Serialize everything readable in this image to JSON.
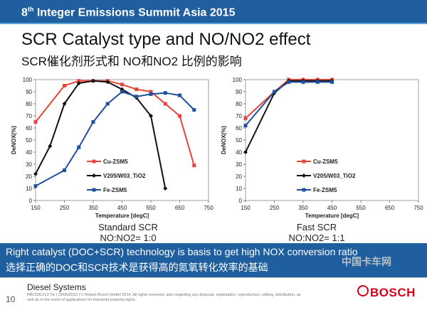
{
  "header": {
    "title_prefix": "8",
    "title_sup": "th",
    "title_rest": " Integer Emissions Summit Asia 2015"
  },
  "slide": {
    "title": "SCR Catalyst type and NO/NO2 effect",
    "subtitle": "SCR催化剂形式和 NO和NO2 比例的影响"
  },
  "banner": {
    "english": "Right catalyst (DOC+SCR) technology is basis to get  high NOX conversion ratio",
    "chinese": "选择正确的DOC和SCR技术是获得高的氮氧转化效率的基础"
  },
  "footer": {
    "page_number": "10",
    "division": "Diesel Systems",
    "legal": "RBCD/EVL3 Tw | 15/05/2015 | © Robert Bosch GmbH 2014. All rights reserved, also regarding any disposal, exploitation, reproduction, editing, distribution, as well as in the event of applications for industrial property rights.",
    "watermark": "中国卡车网",
    "logo_text": "BOSCH"
  },
  "colors": {
    "cu": "#e8443a",
    "v": "#111111",
    "fe": "#1f4f9f",
    "header": "#1f5f9f",
    "brand": "#d4001a"
  },
  "chart_data": [
    {
      "type": "line",
      "title": "Standard SCR",
      "caption": "Standard SCR",
      "caption2": "NO:NO2= 1:0",
      "xlabel": "Temperature [degC]",
      "ylabel": "DeNOX(%)",
      "xlim": [
        150,
        750
      ],
      "ylim": [
        0,
        100
      ],
      "xticks": [
        150,
        250,
        350,
        450,
        550,
        650,
        750
      ],
      "yticks": [
        0,
        10,
        20,
        30,
        40,
        50,
        60,
        70,
        80,
        90,
        100
      ],
      "series": [
        {
          "name": "Cu-ZSM5",
          "x": [
            150,
            250,
            300,
            350,
            400,
            450,
            500,
            550,
            600,
            650,
            700
          ],
          "y": [
            65,
            95,
            99,
            99,
            99,
            96,
            92,
            90,
            80,
            70,
            29
          ]
        },
        {
          "name": "V205/W03_TiO2",
          "x": [
            150,
            200,
            250,
            300,
            350,
            400,
            450,
            500,
            550,
            600
          ],
          "y": [
            22,
            45,
            80,
            97,
            99,
            98,
            92,
            85,
            70,
            10
          ]
        },
        {
          "name": "Fe-ZSM5",
          "x": [
            150,
            250,
            300,
            350,
            400,
            450,
            500,
            550,
            600,
            650,
            700
          ],
          "y": [
            12,
            25,
            44,
            65,
            80,
            90,
            86,
            88,
            89,
            87,
            75
          ]
        }
      ]
    },
    {
      "type": "line",
      "title": "Fast SCR",
      "caption": "Fast SCR",
      "caption2": "NO:NO2= 1:1",
      "xlabel": "Temperature [degC]",
      "ylabel": "DeNOX(%)",
      "xlim": [
        150,
        750
      ],
      "ylim": [
        0,
        100
      ],
      "xticks": [
        150,
        250,
        350,
        450,
        550,
        650,
        750
      ],
      "yticks": [
        0,
        10,
        20,
        30,
        40,
        50,
        60,
        70,
        80,
        90,
        100
      ],
      "series": [
        {
          "name": "Cu-ZSM5",
          "x": [
            150,
            250,
            300,
            350,
            400,
            450
          ],
          "y": [
            68,
            90,
            100,
            100,
            100,
            100
          ]
        },
        {
          "name": "V205/W03_TiO2",
          "x": [
            150,
            250,
            300,
            350,
            400,
            450
          ],
          "y": [
            40,
            89,
            99,
            99,
            99,
            99
          ]
        },
        {
          "name": "Fe-ZSM5",
          "x": [
            150,
            250,
            300,
            350,
            400,
            450
          ],
          "y": [
            62,
            90,
            98,
            98,
            98,
            98
          ]
        }
      ]
    }
  ]
}
